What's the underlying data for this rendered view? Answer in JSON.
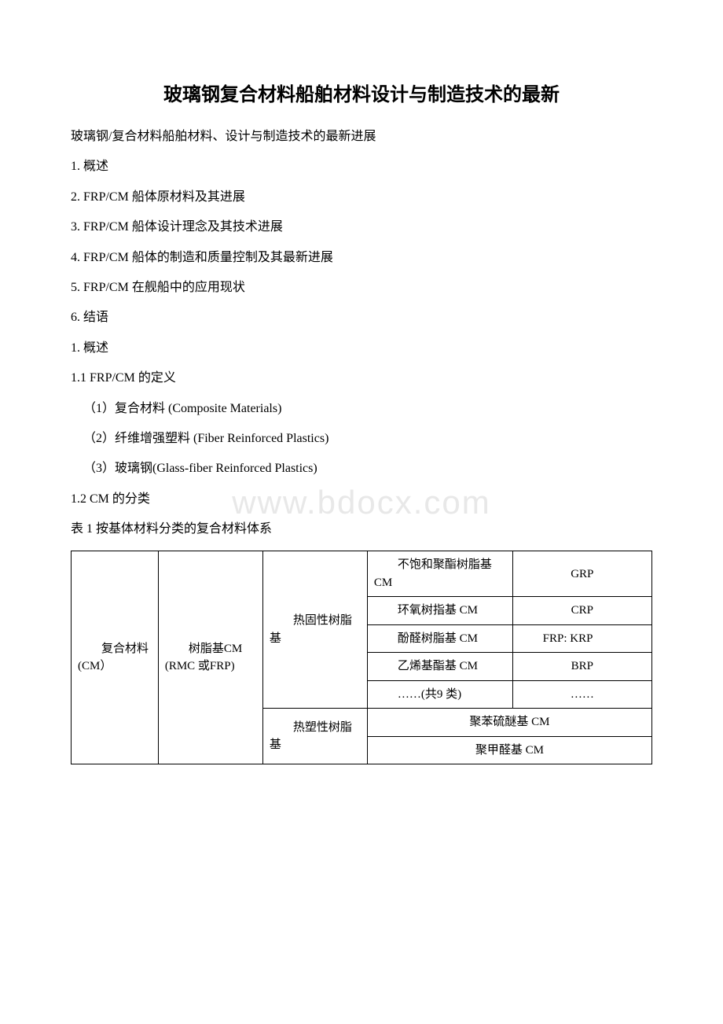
{
  "title": "玻璃钢复合材料船舶材料设计与制造技术的最新",
  "lines": {
    "l1": "玻璃钢/复合材料船舶材料、设计与制造技术的最新进展",
    "l2": "1. 概述",
    "l3": "2. FRP/CM 船体原材料及其进展",
    "l4": "3. FRP/CM 船体设计理念及其技术进展",
    "l5": "4. FRP/CM 船体的制造和质量控制及其最新进展",
    "l6": "5. FRP/CM 在舰船中的应用现状",
    "l7": "6. 结语",
    "l8": "1. 概述",
    "l9": "1.1 FRP/CM 的定义",
    "l10": "（1）复合材料 (Composite Materials)",
    "l11": "（2）纤维增强塑料 (Fiber Reinforced Plastics)",
    "l12": "（3）玻璃钢(Glass-fiber Reinforced Plastics)",
    "l13": "1.2 CM 的分类",
    "l14": "表 1 按基体材料分类的复合材料体系"
  },
  "watermark": "www.bdocx.com",
  "table": {
    "c1": "　　复合材料(CM）",
    "c2": "　　树脂基CM\n(RMC 或FRP)",
    "c3a": "　　热固性树脂基",
    "c3b": "　　热塑性树脂基",
    "r1c4": "　　不饱和聚酯树脂基CM",
    "r1c5": "GRP",
    "r2c4": "　　环氧树指基 CM",
    "r2c5": "CRP",
    "r3c4": "　　酚醛树脂基 CM",
    "r3c5": "　　FRP: KRP",
    "r4c4": "　　乙烯基酯基 CM",
    "r4c5": "BRP",
    "r5c4": "　　……(共9 类)",
    "r5c5": "……",
    "r6c4": "聚苯硫醚基 CM",
    "r7c4": "聚甲醛基 CM"
  }
}
